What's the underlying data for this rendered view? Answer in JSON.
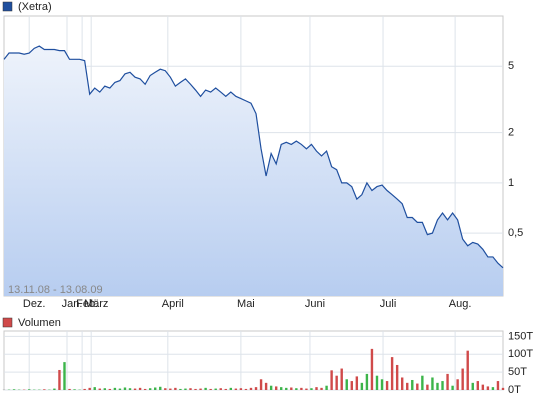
{
  "chart_data": [
    {
      "type": "line",
      "log_scale": true,
      "grid": true,
      "range_label": "13.11.08 - 13.08.09",
      "series": [
        {
          "name": "(Xetra)",
          "color": "#1f4f9f",
          "values": [
            5.5,
            6.0,
            6.0,
            6.0,
            5.9,
            6.0,
            6.4,
            6.6,
            6.3,
            6.3,
            6.3,
            6.2,
            6.2,
            5.5,
            5.5,
            5.5,
            5.4,
            3.4,
            3.7,
            3.5,
            3.8,
            3.7,
            4.0,
            4.1,
            4.5,
            4.6,
            4.3,
            4.2,
            3.9,
            4.4,
            4.6,
            4.8,
            4.7,
            4.3,
            3.8,
            4.0,
            4.2,
            3.9,
            3.6,
            3.3,
            3.6,
            3.5,
            3.7,
            3.5,
            3.3,
            3.5,
            3.3,
            3.2,
            3.1,
            3.0,
            2.6,
            1.6,
            1.1,
            1.5,
            1.3,
            1.7,
            1.75,
            1.7,
            1.78,
            1.7,
            1.6,
            1.7,
            1.55,
            1.45,
            1.55,
            1.25,
            1.2,
            1.0,
            1.0,
            0.95,
            0.8,
            0.85,
            1.0,
            0.9,
            0.95,
            0.97,
            0.9,
            0.85,
            0.8,
            0.75,
            0.62,
            0.62,
            0.58,
            0.58,
            0.49,
            0.5,
            0.6,
            0.66,
            0.6,
            0.66,
            0.6,
            0.46,
            0.42,
            0.44,
            0.43,
            0.4,
            0.36,
            0.36,
            0.33,
            0.31
          ]
        }
      ],
      "ylim": [
        0.21,
        10
      ],
      "yticks": [
        {
          "value": 0.5,
          "label": "0,5"
        },
        1,
        2,
        5
      ],
      "xlim": [
        0,
        99
      ],
      "xticks": [
        {
          "value": 5,
          "label": "Dez."
        },
        {
          "value": 12.5,
          "label": "Jan."
        },
        {
          "value": 15.5,
          "label": "Feb."
        },
        {
          "value": 17.3,
          "label": "März"
        },
        {
          "value": 32.5,
          "label": "April"
        },
        {
          "value": 47,
          "label": "Mai"
        },
        {
          "value": 60.7,
          "label": "Juni"
        },
        {
          "value": 75.2,
          "label": "Juli"
        },
        {
          "value": 89.5,
          "label": "Aug."
        }
      ]
    },
    {
      "type": "bar",
      "grid": true,
      "color": "#d04a4a",
      "up_color": "#3cb44a",
      "series": [
        {
          "name": "Volumen",
          "values": [
            1,
            1,
            2,
            1,
            1,
            2,
            1,
            1,
            2,
            1,
            4,
            56,
            78,
            3,
            2,
            1,
            3,
            6,
            8,
            4,
            5,
            3,
            6,
            4,
            7,
            5,
            4,
            6,
            3,
            5,
            7,
            9,
            5,
            4,
            6,
            3,
            4,
            5,
            3,
            4,
            6,
            3,
            4,
            5,
            3,
            6,
            4,
            5,
            3,
            6,
            8,
            30,
            20,
            12,
            10,
            8,
            6,
            7,
            5,
            6,
            4,
            5,
            8,
            6,
            12,
            55,
            40,
            60,
            30,
            25,
            38,
            20,
            45,
            115,
            40,
            30,
            25,
            92,
            70,
            35,
            20,
            28,
            18,
            40,
            15,
            35,
            20,
            25,
            45,
            12,
            30,
            60,
            110,
            20,
            25,
            15,
            10,
            8,
            25,
            6
          ]
        }
      ],
      "ylim": [
        0,
        165
      ],
      "yticks": [
        {
          "value": 0,
          "label": "0T"
        },
        {
          "value": 50,
          "label": "50T"
        },
        {
          "value": 100,
          "label": "100T"
        },
        {
          "value": 150,
          "label": "150T"
        }
      ]
    }
  ]
}
